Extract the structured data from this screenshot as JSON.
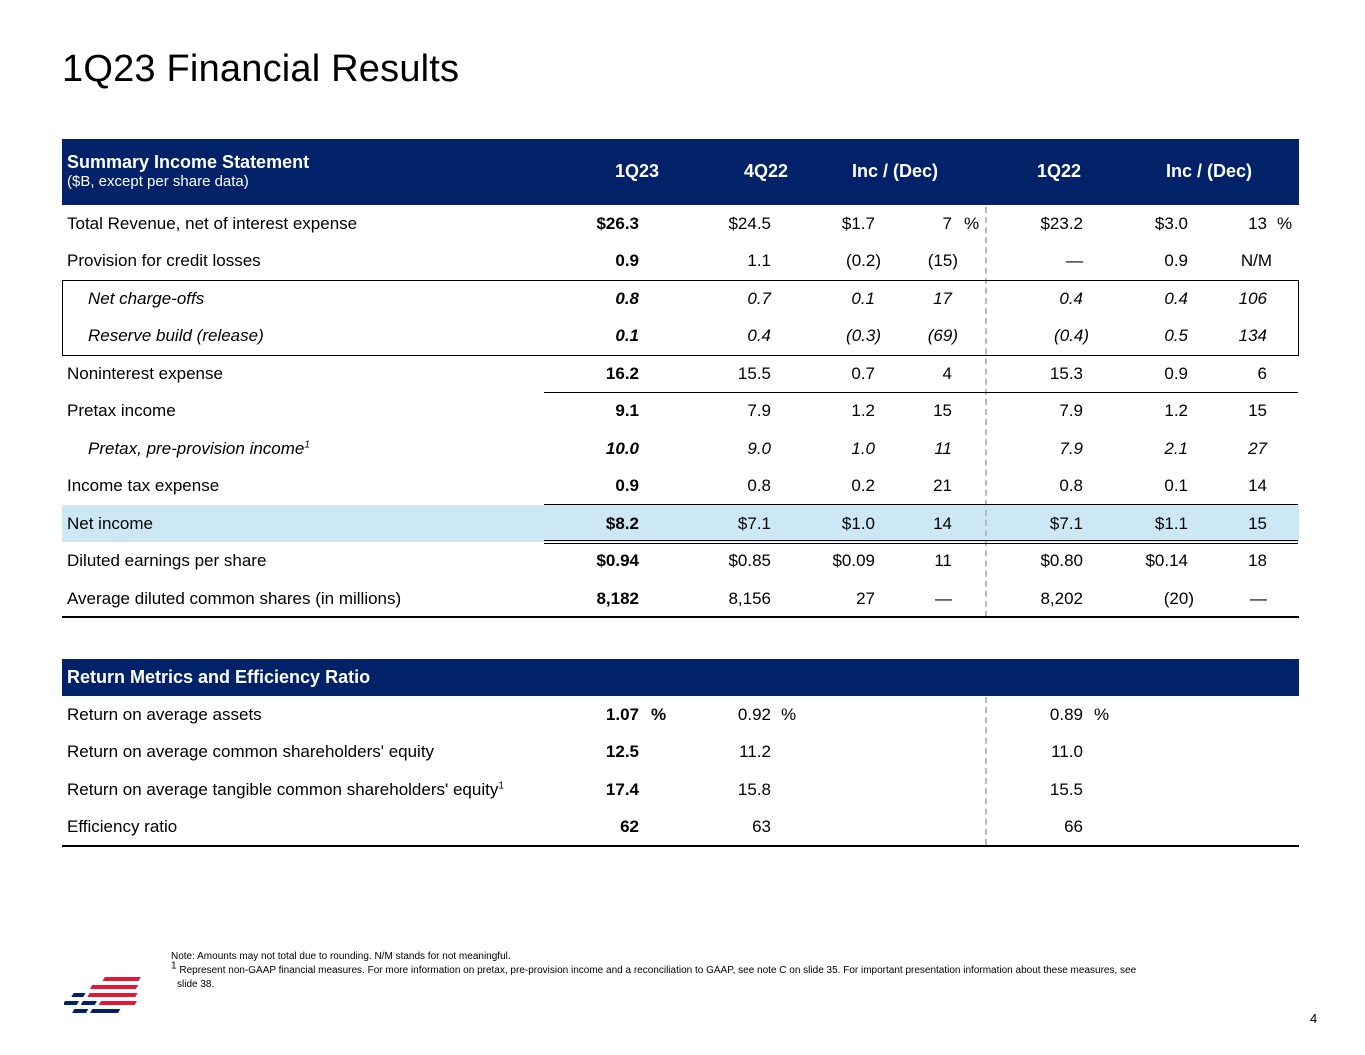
{
  "title": "1Q23 Financial Results",
  "colors": {
    "navy": "#012169",
    "highlight": "#cde8f5",
    "red": "#e31837"
  },
  "income_table": {
    "header_label": "Summary Income Statement",
    "header_sub": "($B, except per share data)",
    "columns": [
      "1Q23",
      "4Q22",
      "Inc / (Dec)",
      "1Q22",
      "Inc / (Dec)"
    ],
    "rows": [
      {
        "label": "Total Revenue, net of interest expense",
        "q1_23": "$26.3",
        "q4_22": "$24.5",
        "inc_q": "$1.7",
        "pct_q": "7",
        "pct_q_sign": "%",
        "q1_22": "$23.2",
        "inc_y": "$3.0",
        "pct_y": "13",
        "pct_y_sign": "%"
      },
      {
        "label": "Provision for credit losses",
        "q1_23": "0.9",
        "q4_22": "1.1",
        "inc_q": "(0.2)",
        "pct_q": "(15)",
        "q1_22": "—",
        "inc_y": "0.9",
        "pct_y": "N/M"
      },
      {
        "label": "Net charge-offs",
        "q1_23": "0.8",
        "q4_22": "0.7",
        "inc_q": "0.1",
        "pct_q": "17",
        "q1_22": "0.4",
        "inc_y": "0.4",
        "pct_y": "106"
      },
      {
        "label": "Reserve build (release)",
        "q1_23": "0.1",
        "q4_22": "0.4",
        "inc_q": "(0.3)",
        "pct_q": "(69)",
        "q1_22": "(0.4)",
        "inc_y": "0.5",
        "pct_y": "134"
      },
      {
        "label": "Noninterest expense",
        "q1_23": "16.2",
        "q4_22": "15.5",
        "inc_q": "0.7",
        "pct_q": "4",
        "q1_22": "15.3",
        "inc_y": "0.9",
        "pct_y": "6"
      },
      {
        "label": "Pretax income",
        "q1_23": "9.1",
        "q4_22": "7.9",
        "inc_q": "1.2",
        "pct_q": "15",
        "q1_22": "7.9",
        "inc_y": "1.2",
        "pct_y": "15"
      },
      {
        "label": "Pretax, pre-provision income",
        "label_sup": "1",
        "q1_23": "10.0",
        "q4_22": "9.0",
        "inc_q": "1.0",
        "pct_q": "11",
        "q1_22": "7.9",
        "inc_y": "2.1",
        "pct_y": "27"
      },
      {
        "label": "Income tax expense",
        "q1_23": "0.9",
        "q4_22": "0.8",
        "inc_q": "0.2",
        "pct_q": "21",
        "q1_22": "0.8",
        "inc_y": "0.1",
        "pct_y": "14"
      },
      {
        "label": "Net income",
        "q1_23": "$8.2",
        "q4_22": "$7.1",
        "inc_q": "$1.0",
        "pct_q": "14",
        "q1_22": "$7.1",
        "inc_y": "$1.1",
        "pct_y": "15"
      },
      {
        "label": "Diluted earnings per share",
        "q1_23": "$0.94",
        "q4_22": "$0.85",
        "inc_q": "$0.09",
        "pct_q": "11",
        "q1_22": "$0.80",
        "inc_y": "$0.14",
        "pct_y": "18"
      },
      {
        "label": "Average diluted common shares (in millions)",
        "q1_23": "8,182",
        "q4_22": "8,156",
        "inc_q": "27",
        "pct_q": "—",
        "q1_22": "8,202",
        "inc_y": "(20)",
        "pct_y": "—"
      }
    ]
  },
  "return_table": {
    "header_label": "Return Metrics and Efficiency Ratio",
    "rows": [
      {
        "label": "Return on average assets",
        "q1_23": "1.07",
        "q1_23_sign": "%",
        "q4_22": "0.92",
        "q4_22_sign": "%",
        "q1_22": "0.89",
        "q1_22_sign": "%"
      },
      {
        "label": "Return on average common shareholders' equity",
        "q1_23": "12.5",
        "q4_22": "11.2",
        "q1_22": "11.0"
      },
      {
        "label": "Return on average tangible common shareholders' equity",
        "label_sup": "1",
        "q1_23": "17.4",
        "q4_22": "15.8",
        "q1_22": "15.5"
      },
      {
        "label": "Efficiency ratio",
        "q1_23": "62",
        "q4_22": "63",
        "q1_22": "66"
      }
    ]
  },
  "notes": {
    "note1": "Note: Amounts may not total due to rounding. N/M stands for not meaningful.",
    "footnote_mark": "1",
    "footnote_line1": "Represent non-GAAP financial measures. For more information on pretax, pre-provision income and a reconciliation to GAAP, see note C on slide 35. For important presentation information about these measures, see",
    "footnote_line2": "slide 38."
  },
  "page_number": "4",
  "logo_icon": "bank-flag-logo-icon"
}
